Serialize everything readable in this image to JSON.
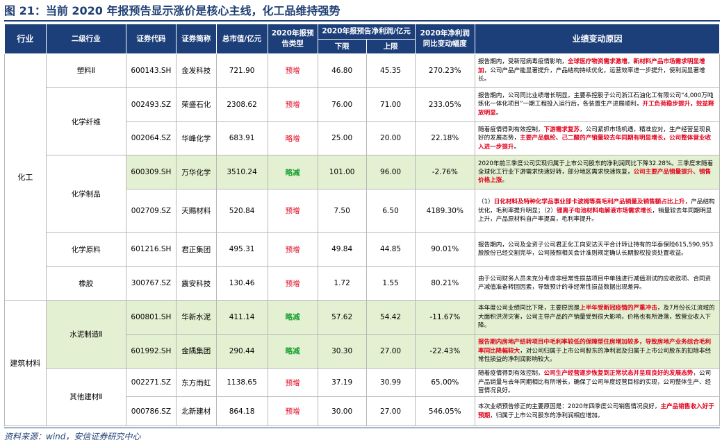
{
  "title": "图 21：当前 2020 年报预告显示涨价是核心主线，化工品维持强势",
  "headers": {
    "industry": "行业",
    "sub_industry": "二级行业",
    "code": "证券代码",
    "name": "证券简称",
    "mktcap": "总市值/亿元",
    "type": "2020年报预告类型",
    "profit": "2020年报预告净利润/亿元",
    "lower": "下限",
    "upper": "上限",
    "change": "2020年净利润同比变动幅度",
    "reason": "业绩变动原因"
  },
  "industries": {
    "chem": "化工",
    "build": "建筑材料"
  },
  "subs": {
    "plastic": "塑料Ⅱ",
    "fiber": "化学纤维",
    "product": "化学制品",
    "raw": "化学原料",
    "rubber": "橡胶",
    "cement": "水泥制造Ⅱ",
    "other": "其他建材Ⅱ"
  },
  "rows": [
    {
      "code": "600143.SH",
      "name": "金发科技",
      "mktcap": "721.90",
      "type": "预增",
      "lower": "46.80",
      "upper": "45.35",
      "change": "270.23%",
      "r": [
        "报告期内，受新冠病毒疫情影响，",
        "全球医疗物资需求激增",
        "。",
        "新材料产品市场需求明显增加",
        "，公司产品产能显著提升，产品结构持续优化，运营效率进一步提升，使利润显著增长。"
      ]
    },
    {
      "code": "002493.SZ",
      "name": "荣盛石化",
      "mktcap": "2308.62",
      "type": "预增",
      "lower": "76.00",
      "upper": "71.00",
      "change": "233.05%",
      "r": [
        "报告期内，公司同比业绩增长明显，主要系控股子公司浙江石油化工有限公司“4,000万吨炼化一体化项目”一期工程投入运行后，各装置生产进展顺利，",
        "开工负荷稳步提升，效益释放明显",
        "。"
      ]
    },
    {
      "code": "002064.SZ",
      "name": "华峰化学",
      "mktcap": "683.91",
      "type": "略增",
      "lower": "25.00",
      "upper": "20.00",
      "change": "22.18%",
      "r": [
        "随着疫情得到有效控制，",
        "下游需求复苏",
        "，公司紧抓市场机遇，精准应对，生产经营呈现良好的发展态势，",
        "主要产品氨纶、己二酸的产销量较去年同期有明显增长，公司整体营业收入进一步提升",
        "。"
      ]
    },
    {
      "code": "600309.SH",
      "name": "万华化学",
      "mktcap": "3510.24",
      "type": "略减",
      "lower": "101.00",
      "upper": "96.00",
      "change": "-2.76%",
      "r": [
        "2020年前三季度公司实现归属于上市公司股东的净利润同比下降32.28%。三季度末随着全球化工行业下游需求快速好转，部分地区需求快速恢复，",
        "公司主要产品销量提升、销售价格上涨",
        "。"
      ]
    },
    {
      "code": "002709.SZ",
      "name": "天赐材料",
      "mktcap": "520.84",
      "type": "预增",
      "lower": "7.50",
      "upper": "6.50",
      "change": "4189.30%",
      "r": [
        "（1）",
        "日化材料及特种化学品事业部卡波姆等高毛利产品销量及销售额占比上升",
        "，产品结构优化，毛利率提升明显；（2）",
        "锂离子电池材料电解液市场需求增长",
        "，销量较去年同期明显上升，产品原材料自产率提高，毛利率提升。"
      ]
    },
    {
      "code": "601216.SH",
      "name": "君正集团",
      "mktcap": "495.31",
      "type": "预增",
      "lower": "49.84",
      "upper": "44.85",
      "change": "90.01%",
      "r": [
        "报告期内，公司及全资子公司君正化工向安达天平合计转让持有的华泰保险615,590,953股股份已经交割完毕，公司按照相关会计准则规定确认长期股权投资处置收益。"
      ]
    },
    {
      "code": "300767.SZ",
      "name": "震安科技",
      "mktcap": "130.46",
      "type": "预增",
      "lower": "1.72",
      "upper": "1.55",
      "change": "80.21%",
      "r": [
        "由于公司财务人员未充分考虑非经常性损益项目中单独进行减值测试的应收款项、合同资产减值准备转回因素，导致预计的非经常性损益数据出现差异。"
      ]
    },
    {
      "code": "600801.SH",
      "name": "华新水泥",
      "mktcap": "411.14",
      "type": "略减",
      "lower": "57.62",
      "upper": "54.42",
      "change": "-11.67%",
      "r": [
        "本年度公司业绩同比下降，主要原因是",
        "上半年受新冠疫情的严重冲击",
        "，及7月份长江流域的大面积洪涝灾害，公司主导产品的产销量受到很大影响，价格也有所滑落，致营业收入下降。"
      ]
    },
    {
      "code": "601992.SH",
      "name": "金隅集团",
      "mktcap": "290.44",
      "type": "略减",
      "lower": "30.30",
      "upper": "27.00",
      "change": "-22.43%",
      "r": [
        "",
        "报告期内房地产结转项目中毛利率较低的保障型住房增加较多，导致房地产业务综合毛利率同比降幅较大",
        "，对公司归属于上市公司股东的净利润及归属于上市公司股东的扣除非经常性损益的净利润影响较大。"
      ]
    },
    {
      "code": "002271.SZ",
      "name": "东方雨虹",
      "mktcap": "1138.65",
      "type": "预增",
      "lower": "37.19",
      "upper": "30.99",
      "change": "65.00%",
      "r": [
        "随着疫情得到有效控制，",
        "公司生产经营逐步恢复到正常状态并呈现良好的发展态势",
        "，公司产品销量与去年同期相比有所增长，确保了公司年度经营目标的实现，公司整体生产、经营情况良好。"
      ]
    },
    {
      "code": "000786.SZ",
      "name": "北新建材",
      "mktcap": "864.18",
      "type": "预增",
      "lower": "30.00",
      "upper": "27.00",
      "change": "546.05%",
      "r": [
        "本次业绩预告修正的主要原因是：2020年四季度公司销售情况良好，",
        "主产品销售收入好于预期",
        "，归属于上市公司股东的净利润相应增加。"
      ]
    }
  ],
  "source": "资料来源：wind，安信证券研究中心",
  "colors": {
    "header_bg": "#1c3f7a",
    "red": "#e0001a",
    "green": "#18a030",
    "highlight_row": "#e4f0d2"
  }
}
